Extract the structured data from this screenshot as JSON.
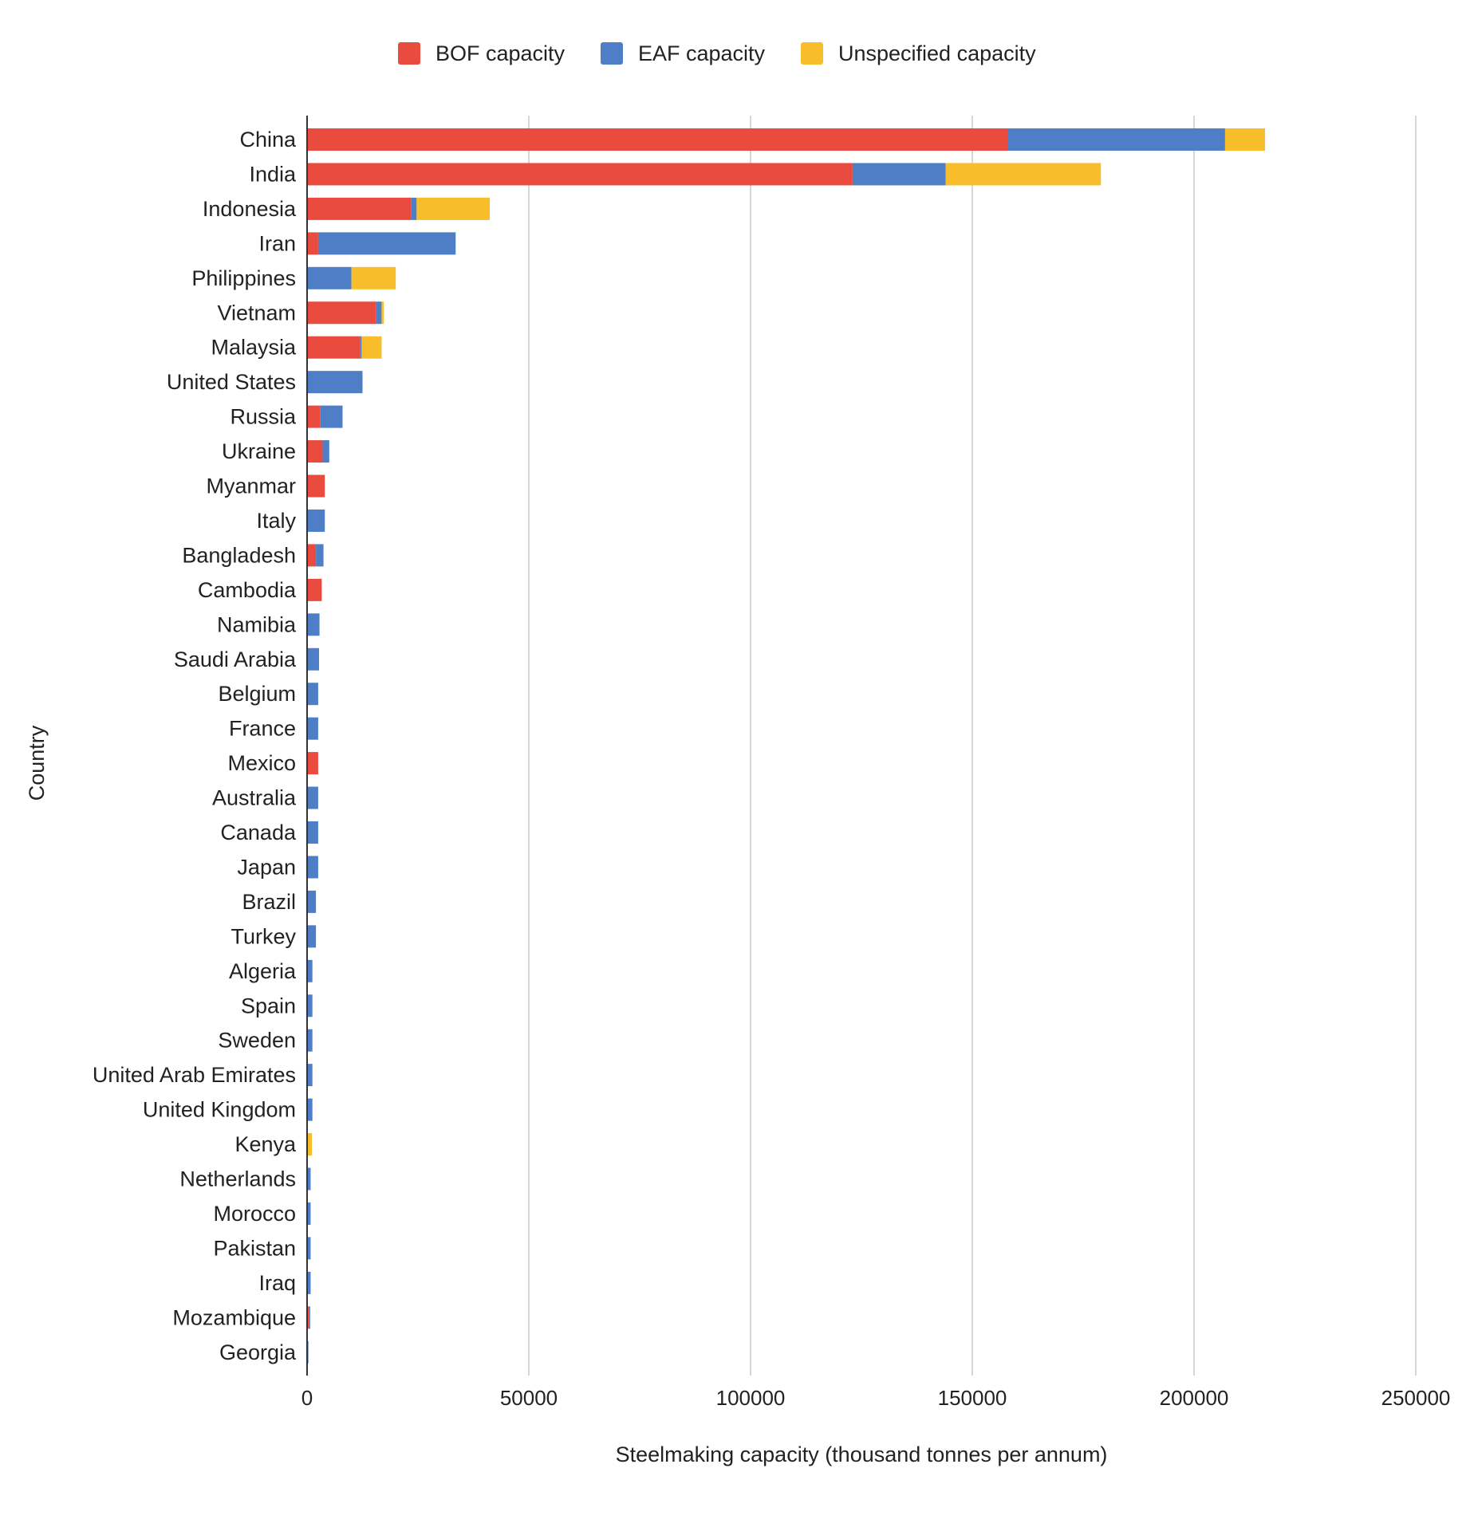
{
  "chart_data": {
    "type": "bar",
    "orientation": "horizontal",
    "stacked": true,
    "xlabel": "Steelmaking capacity (thousand tonnes per annum)",
    "ylabel": "Country",
    "xlim": [
      0,
      250000
    ],
    "xticks": [
      0,
      50000,
      100000,
      150000,
      200000,
      250000
    ],
    "grid": true,
    "legend_position": "top",
    "categories": [
      "China",
      "India",
      "Indonesia",
      "Iran",
      "Philippines",
      "Vietnam",
      "Malaysia",
      "United States",
      "Russia",
      "Ukraine",
      "Myanmar",
      "Italy",
      "Bangladesh",
      "Cambodia",
      "Namibia",
      "Saudi Arabia",
      "Belgium",
      "France",
      "Mexico",
      "Australia",
      "Canada",
      "Japan",
      "Brazil",
      "Turkey",
      "Algeria",
      "Spain",
      "Sweden",
      "United Arab Emirates",
      "United Kingdom",
      "Kenya",
      "Netherlands",
      "Morocco",
      "Pakistan",
      "Iraq",
      "Mozambique",
      "Georgia"
    ],
    "series": [
      {
        "name": "BOF capacity",
        "color": "#ea4b3f",
        "values": [
          158000,
          123000,
          23500,
          2500,
          0,
          15500,
          12000,
          0,
          3000,
          3500,
          4000,
          0,
          2000,
          3300,
          0,
          0,
          0,
          0,
          2500,
          0,
          0,
          0,
          0,
          0,
          0,
          0,
          0,
          0,
          0,
          0,
          0,
          0,
          0,
          0,
          400,
          0
        ]
      },
      {
        "name": "EAF capacity",
        "color": "#4e7ec6",
        "values": [
          49000,
          21000,
          1200,
          31000,
          10000,
          1300,
          300,
          12500,
          5000,
          1500,
          0,
          4000,
          1700,
          0,
          2800,
          2700,
          2500,
          2500,
          0,
          2500,
          2500,
          2500,
          2000,
          2000,
          1200,
          1200,
          1200,
          1200,
          1200,
          0,
          800,
          800,
          800,
          800,
          300,
          300
        ]
      },
      {
        "name": "Unspecified capacity",
        "color": "#f8bd2a",
        "values": [
          9000,
          35000,
          16500,
          0,
          10000,
          500,
          4500,
          0,
          0,
          0,
          0,
          0,
          0,
          0,
          0,
          0,
          0,
          0,
          0,
          0,
          0,
          0,
          0,
          0,
          0,
          0,
          0,
          0,
          0,
          1100,
          0,
          0,
          0,
          0,
          0,
          0
        ]
      }
    ]
  }
}
